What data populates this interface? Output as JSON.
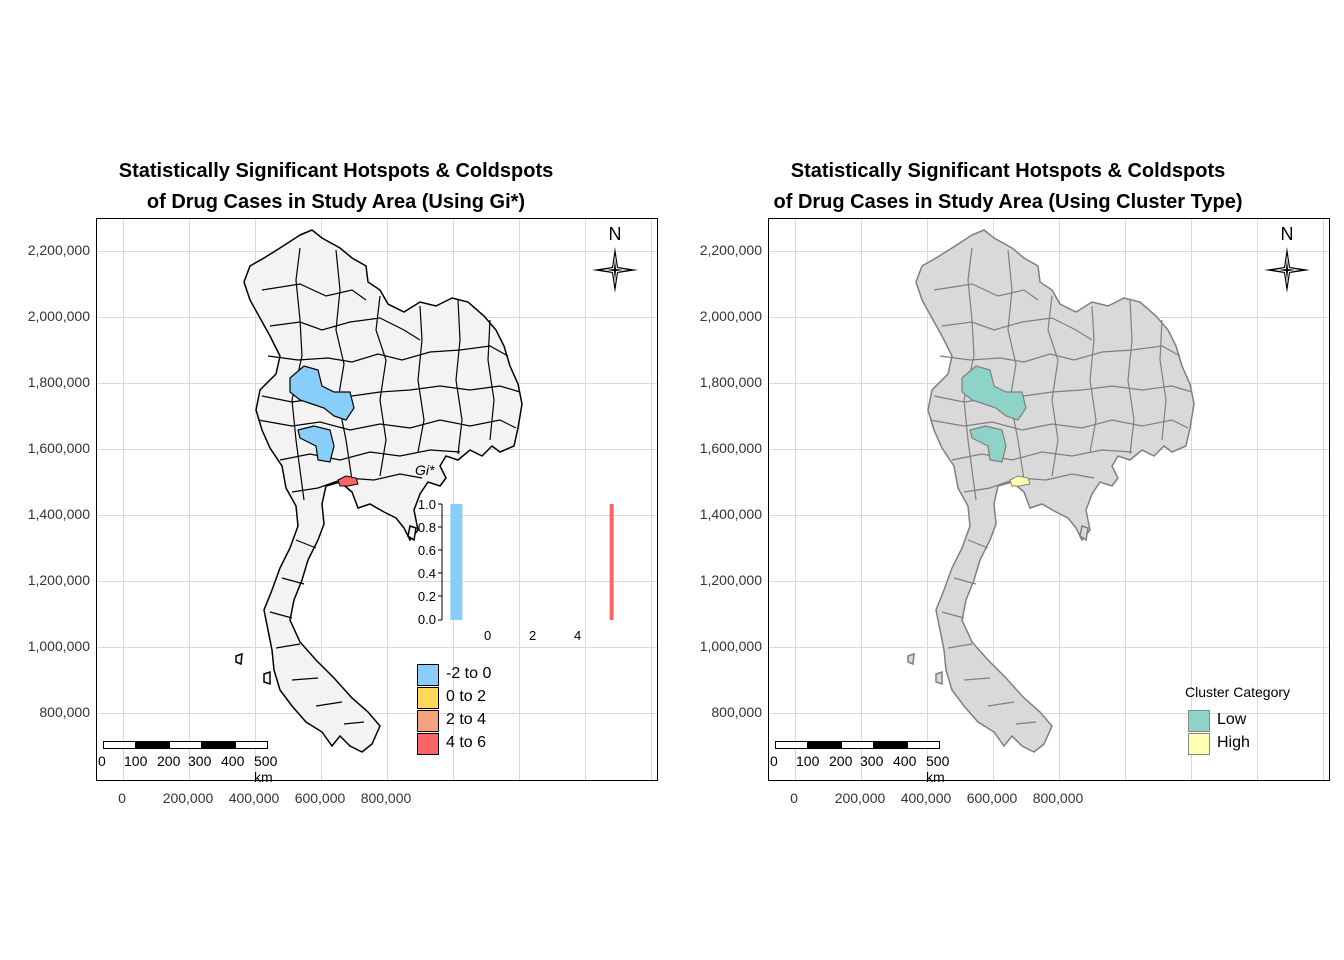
{
  "colors": {
    "grid": "#d9d9d9",
    "frame": "#000000",
    "left_fill": "#f3f3f3",
    "left_stroke": "#000000",
    "right_fill": "#d9d9d9",
    "right_stroke": "#7f7f7f",
    "hotspot_blue": "#87cefa",
    "hotspot_red": "#fa6464",
    "cluster_low": "#8dd3c7",
    "cluster_high": "#ffffb3"
  },
  "left": {
    "title_line1": "Statistically Significant Hotspots & Coldspots",
    "title_line2": "of Drug Cases in Study Area (Using Gi*)",
    "y_axis_labels": [
      "2,200,000",
      "2,000,000",
      "1,800,000",
      "1,600,000",
      "1,400,000",
      "1,200,000",
      "1,000,000",
      "800,000"
    ],
    "x_axis_labels": [
      "0",
      "200,000",
      "400,000",
      "600,000",
      "800,000"
    ],
    "north_label": "N",
    "scale_labels": [
      "0",
      "100",
      "200",
      "300",
      "400",
      "500 km"
    ],
    "legend_title": "Gi*",
    "legend_items": [
      {
        "label": "-2 to 0",
        "color": "#87cefa"
      },
      {
        "label": "0 to 2",
        "color": "#ffd75a"
      },
      {
        "label": "2 to 4",
        "color": "#f5a37d"
      },
      {
        "label": "4 to 6",
        "color": "#fa6464"
      }
    ],
    "hist": {
      "y_ticks": [
        "1.0",
        "0.8",
        "0.6",
        "0.4",
        "0.2",
        "0.0"
      ],
      "x_ticks": [
        "0",
        "2",
        "4"
      ],
      "bars": [
        {
          "x": -1.5,
          "value": 1.0,
          "color": "#87cefa"
        },
        {
          "x": 5.5,
          "value": 1.0,
          "color": "#fa6464"
        }
      ]
    }
  },
  "right": {
    "title_line1": "Statistically Significant Hotspots & Coldspots",
    "title_line2": "of Drug Cases in Study Area (Using Cluster Type)",
    "y_axis_labels": [
      "2,200,000",
      "2,000,000",
      "1,800,000",
      "1,600,000",
      "1,400,000",
      "1,200,000",
      "1,000,000",
      "800,000"
    ],
    "x_axis_labels": [
      "0",
      "200,000",
      "400,000",
      "600,000",
      "800,000"
    ],
    "north_label": "N",
    "scale_labels": [
      "0",
      "100",
      "200",
      "300",
      "400",
      "500 km"
    ],
    "legend_title": "Cluster Category",
    "legend_items": [
      {
        "label": "Low",
        "color": "#8dd3c7"
      },
      {
        "label": "High",
        "color": "#ffffb3"
      }
    ]
  }
}
